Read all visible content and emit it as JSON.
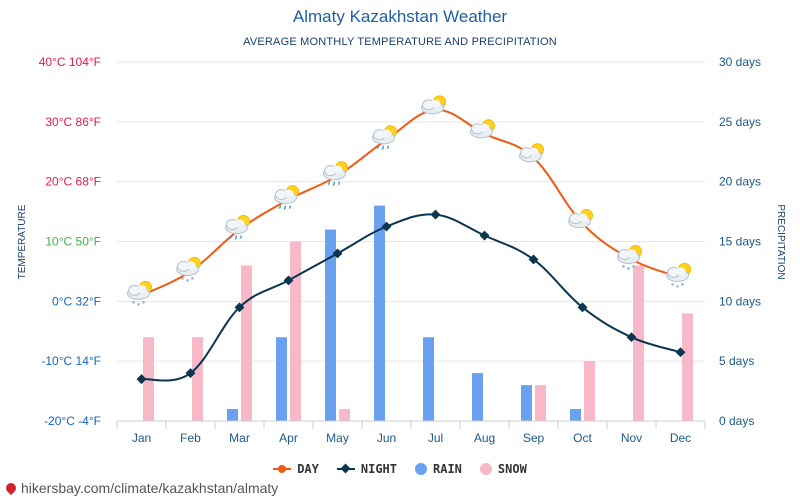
{
  "chart_data": {
    "type": "line+bar",
    "title": "Almaty Kazakhstan Weather",
    "subtitle": "AVERAGE MONTHLY TEMPERATURE AND PRECIPITATION",
    "ylabel_left": "TEMPERATURE",
    "ylabel_right": "PRECIPITATION",
    "categories": [
      "Jan",
      "Feb",
      "Mar",
      "Apr",
      "May",
      "Jun",
      "Jul",
      "Aug",
      "Sep",
      "Oct",
      "Nov",
      "Dec"
    ],
    "temp_ticks": [
      {
        "value": 40,
        "label": "40°C 104°F",
        "color": "#e6194b"
      },
      {
        "value": 30,
        "label": "30°C 86°F",
        "color": "#e6194b"
      },
      {
        "value": 20,
        "label": "20°C 68°F",
        "color": "#e6194b"
      },
      {
        "value": 10,
        "label": "10°C 50°F",
        "color": "#3cb44b"
      },
      {
        "value": 0,
        "label": "0°C 32°F",
        "color": "#1565c0"
      },
      {
        "value": -10,
        "label": "-10°C 14°F",
        "color": "#1565c0"
      },
      {
        "value": -20,
        "label": "-20°C -4°F",
        "color": "#1565c0"
      }
    ],
    "temp_range": [
      -20,
      40
    ],
    "precip_ticks": [
      {
        "value": 30,
        "label": "30 days"
      },
      {
        "value": 25,
        "label": "25 days"
      },
      {
        "value": 20,
        "label": "20 days"
      },
      {
        "value": 15,
        "label": "15 days"
      },
      {
        "value": 10,
        "label": "10 days"
      },
      {
        "value": 5,
        "label": "5 days"
      },
      {
        "value": 0,
        "label": "0 days"
      }
    ],
    "precip_range": [
      0,
      30
    ],
    "series": [
      {
        "name": "DAY",
        "kind": "line",
        "color": "#f05a12",
        "marker": "circle",
        "values": [
          1,
          5,
          12,
          17,
          21,
          27,
          32,
          28,
          24,
          13,
          7,
          4
        ]
      },
      {
        "name": "NIGHT",
        "kind": "line",
        "color": "#0b3650",
        "marker": "diamond",
        "values": [
          -13,
          -12,
          -1,
          3.5,
          8,
          12.5,
          14.5,
          11,
          7,
          -1,
          -6,
          -8.5
        ]
      },
      {
        "name": "RAIN",
        "kind": "bar",
        "color": "#6aa0f0",
        "unit": "days",
        "values": [
          0,
          0,
          1,
          7,
          16,
          18,
          7,
          4,
          3,
          1,
          0,
          0
        ]
      },
      {
        "name": "SNOW",
        "kind": "bar",
        "color": "#f9b8c8",
        "unit": "days",
        "values": [
          7,
          7,
          13,
          15,
          1,
          0,
          0,
          0,
          3,
          5,
          13,
          9
        ]
      }
    ],
    "weather_icons": [
      "partly-cloudy-snow-icon",
      "partly-cloudy-snow-icon",
      "partly-cloudy-rain-icon",
      "partly-cloudy-rain-icon",
      "partly-cloudy-rain-icon",
      "partly-cloudy-rain-icon",
      "partly-cloudy-sun-icon",
      "partly-cloudy-sun-icon",
      "partly-cloudy-sun-icon",
      "partly-cloudy-sun-icon",
      "partly-cloudy-snow-icon",
      "partly-cloudy-snow-icon"
    ],
    "grid": true,
    "legend_position": "bottom-center"
  },
  "legend": {
    "day": "DAY",
    "night": "NIGHT",
    "rain": "RAIN",
    "snow": "SNOW"
  },
  "footer": {
    "url": "hikersbay.com/climate/kazakhstan/almaty"
  }
}
